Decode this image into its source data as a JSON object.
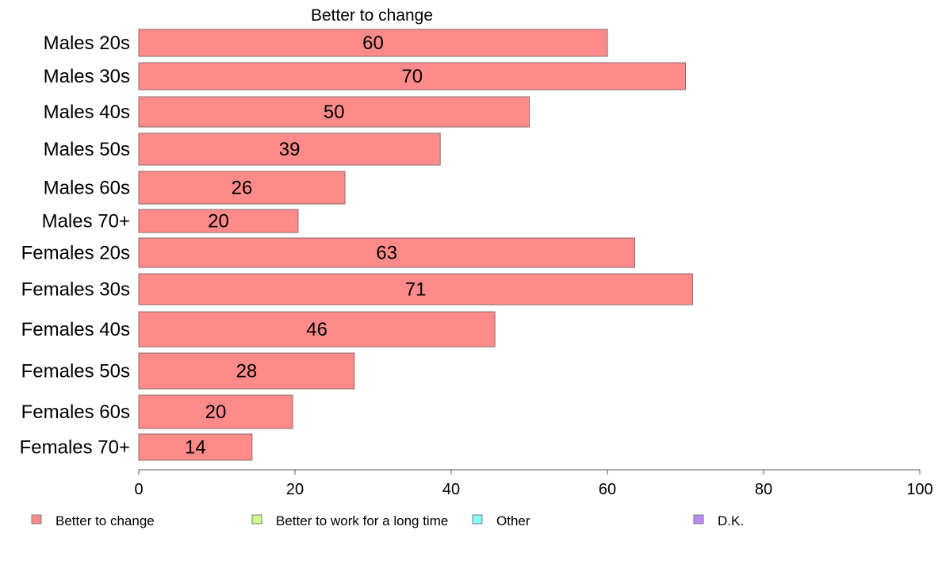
{
  "chart_data": {
    "type": "bar",
    "orientation": "horizontal",
    "title": "Better to change",
    "xlabel": "",
    "ylabel": "",
    "categories": [
      "Males 20s",
      "Males 30s",
      "Males 40s",
      "Males 50s",
      "Males 60s",
      "Males 70+",
      "Females 20s",
      "Females 30s",
      "Females 40s",
      "Females 50s",
      "Females 60s",
      "Females 70+"
    ],
    "series": [
      {
        "name": "Better to change",
        "color": "#FF8A8A",
        "values": [
          60,
          70,
          50,
          38.6,
          26.4,
          20.4,
          63.5,
          70.9,
          45.6,
          27.6,
          19.7,
          14.5
        ],
        "labels": [
          "60",
          "70",
          "50",
          "39",
          "26",
          "20",
          "63",
          "71",
          "46",
          "28",
          "20",
          "14"
        ]
      }
    ],
    "xlim": [
      0,
      100
    ],
    "xticks": [
      "0",
      "20",
      "40",
      "60",
      "80",
      "100"
    ],
    "grid": false,
    "legend": {
      "position": "bottom",
      "items": [
        {
          "label": "Better to change",
          "color": "#FF8A8A"
        },
        {
          "label": "Better to work for a long time",
          "color": "#CCFF88"
        },
        {
          "label": "Other",
          "color": "#88FFFF"
        },
        {
          "label": "D.K.",
          "color": "#BB88FF"
        }
      ]
    }
  }
}
